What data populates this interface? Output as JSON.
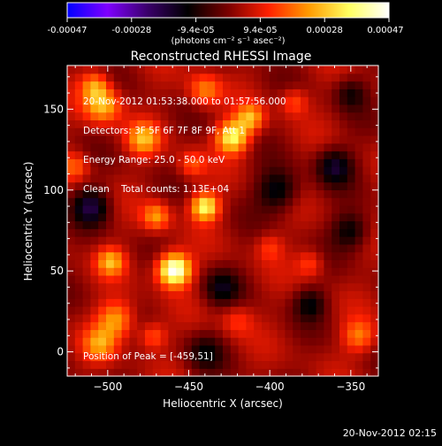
{
  "colorbar": {
    "ticks": [
      "-0.00047",
      "-0.00028",
      "-9.4e-05",
      "9.4e-05",
      "0.00028",
      "0.00047"
    ],
    "unit_label": "(photons cm⁻² s⁻¹ asec⁻²)",
    "range": [
      -0.00047,
      0.00047
    ],
    "colormap": [
      "#0000ff",
      "#7f00ff",
      "#3a006a",
      "#000000",
      "#7a0000",
      "#ff2000",
      "#ff9a00",
      "#ffff60",
      "#ffffff"
    ]
  },
  "chart_data": {
    "type": "heatmap",
    "title": "Reconstructed RHESSI Image",
    "xlabel": "Heliocentric X (arcsec)",
    "ylabel": "Heliocentric Y (arcsec)",
    "xlim": [
      -525,
      -333
    ],
    "ylim": [
      -15,
      177
    ],
    "x_ticks": [
      -500,
      -450,
      -400,
      -350
    ],
    "y_ticks": [
      0,
      50,
      100,
      150
    ],
    "info_lines": [
      "20-Nov-2012 01:53:38.000 to 01:57:56.000",
      "Detectors: 3F 5F 6F 7F 8F 9F, Att 1",
      "Energy Range: 25.0 - 50.0 keV",
      "Clean    Total counts: 1.13E+04"
    ],
    "peak_label": "Position of Peak = [-459,51]",
    "peak_position": [
      -459,
      51
    ],
    "sources": [
      {
        "x": -459,
        "y": 51,
        "sigma": 7,
        "amp": 0.00047
      },
      {
        "x": -440,
        "y": 90,
        "sigma": 6,
        "amp": 0.00034
      },
      {
        "x": -423,
        "y": 133,
        "sigma": 7,
        "amp": 0.00033
      },
      {
        "x": -412,
        "y": 145,
        "sigma": 6,
        "amp": 0.00022
      },
      {
        "x": -478,
        "y": 132,
        "sigma": 7,
        "amp": 0.00022
      },
      {
        "x": -503,
        "y": 153,
        "sigma": 8,
        "amp": 0.00025
      },
      {
        "x": -498,
        "y": 56,
        "sigma": 6,
        "amp": 0.00022
      },
      {
        "x": -508,
        "y": 165,
        "sigma": 6,
        "amp": 0.00018
      },
      {
        "x": -470,
        "y": 84,
        "sigma": 6,
        "amp": 0.0002
      },
      {
        "x": -495,
        "y": 20,
        "sigma": 8,
        "amp": 0.00022
      },
      {
        "x": -505,
        "y": 5,
        "sigma": 7,
        "amp": 0.00018
      },
      {
        "x": -472,
        "y": 10,
        "sigma": 6,
        "amp": 0.00015
      },
      {
        "x": -345,
        "y": 10,
        "sigma": 7,
        "amp": 0.00017
      },
      {
        "x": -375,
        "y": 55,
        "sigma": 6,
        "amp": 0.00012
      },
      {
        "x": -385,
        "y": 155,
        "sigma": 6,
        "amp": 0.00013
      },
      {
        "x": -440,
        "y": 162,
        "sigma": 7,
        "amp": 0.00018
      },
      {
        "x": -520,
        "y": 115,
        "sigma": 6,
        "amp": 0.00014
      },
      {
        "x": -448,
        "y": 116,
        "sigma": 6,
        "amp": 0.00013
      },
      {
        "x": -400,
        "y": 65,
        "sigma": 6,
        "amp": 0.0001
      },
      {
        "x": -420,
        "y": 20,
        "sigma": 7,
        "amp": 0.0001
      },
      {
        "x": -360,
        "y": 115,
        "sigma": 8,
        "amp": -0.00018
      },
      {
        "x": -510,
        "y": 90,
        "sigma": 8,
        "amp": -0.0002
      },
      {
        "x": -395,
        "y": 100,
        "sigma": 9,
        "amp": -0.00018
      },
      {
        "x": -350,
        "y": 75,
        "sigma": 8,
        "amp": -0.00016
      },
      {
        "x": -430,
        "y": 40,
        "sigma": 8,
        "amp": -0.00014
      },
      {
        "x": -375,
        "y": 30,
        "sigma": 7,
        "amp": -0.00014
      },
      {
        "x": -440,
        "y": 0,
        "sigma": 8,
        "amp": -0.00012
      },
      {
        "x": -350,
        "y": 160,
        "sigma": 7,
        "amp": -0.00012
      }
    ]
  },
  "footer": {
    "date": "20-Nov-2012 02:15"
  }
}
